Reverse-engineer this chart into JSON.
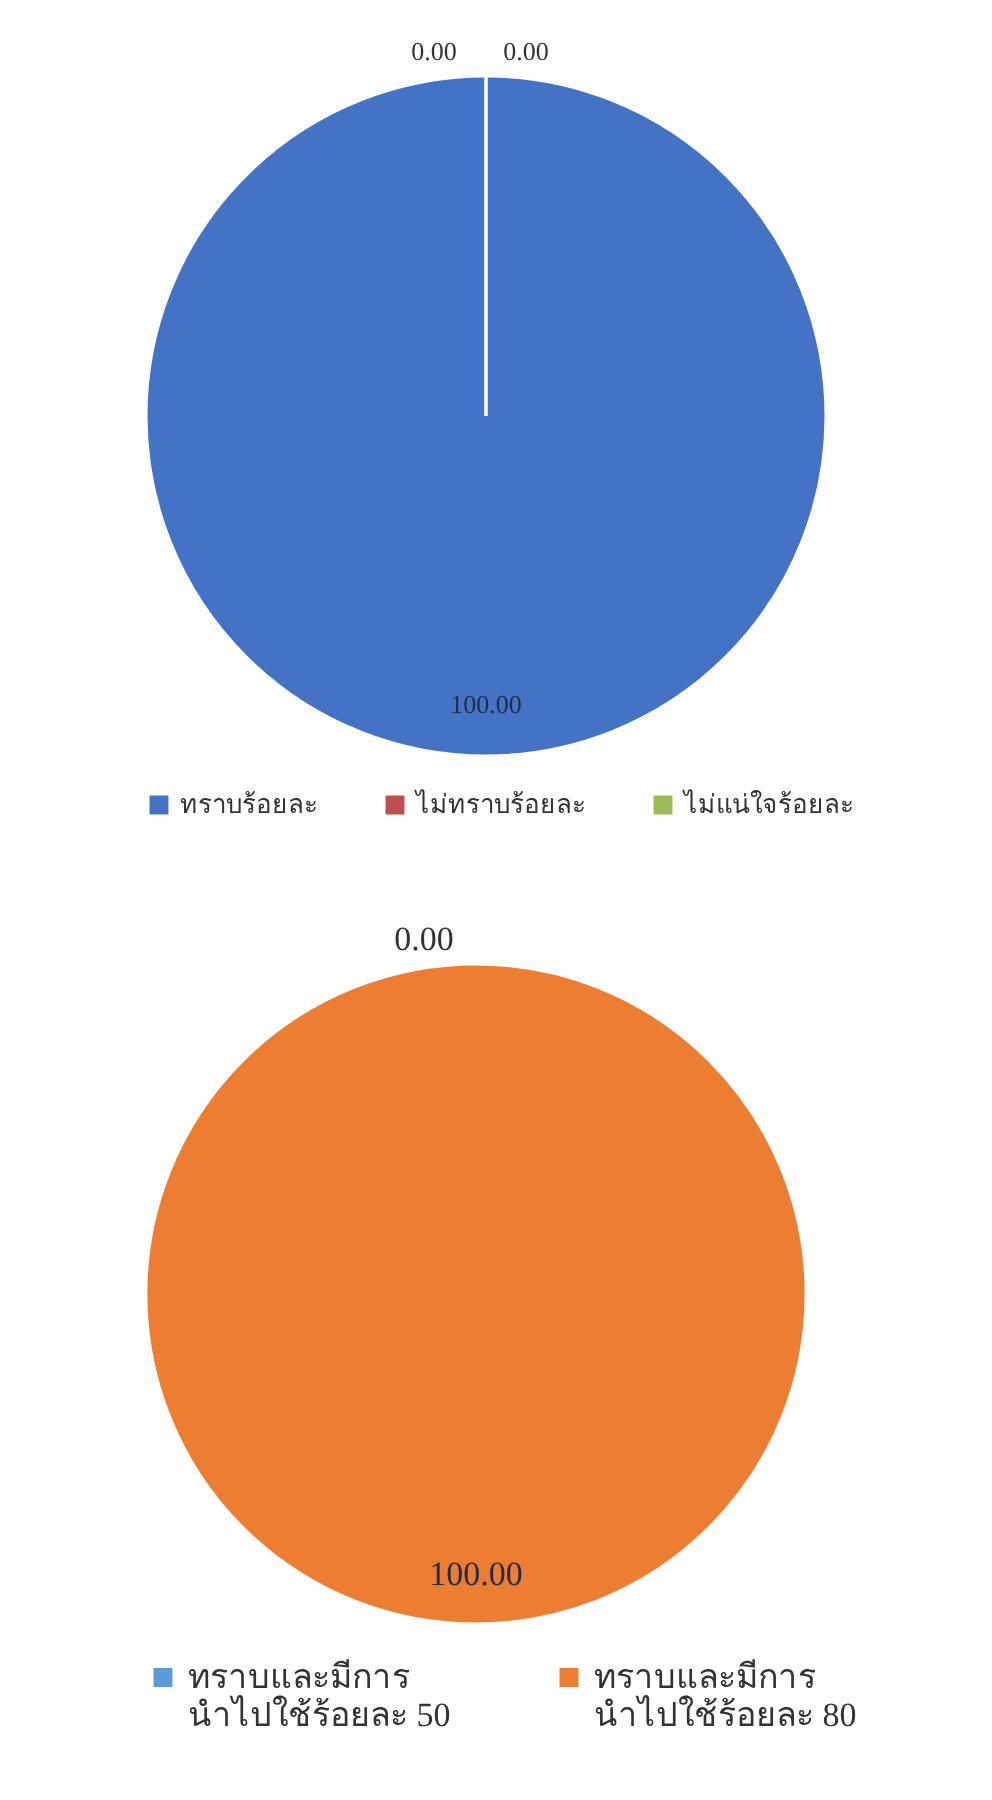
{
  "chart_data": [
    {
      "type": "pie",
      "categories": [
        "ทราบร้อยละ",
        "ไม่ทราบร้อยละ",
        "ไม่แน่ใจร้อยละ"
      ],
      "values": [
        100,
        0,
        0
      ],
      "colors": [
        "#4472c4",
        "#c0504d",
        "#9bbb59"
      ],
      "value_labels": [
        "100.00",
        "0.00",
        "0.00"
      ],
      "legend": "bottom"
    },
    {
      "type": "pie",
      "categories": [
        "ทราบและมีการ\nนำไปใช้ร้อยละ 50",
        "ทราบและมีการ\nนำไปใช้ร้อยละ 80"
      ],
      "values": [
        0,
        100
      ],
      "colors": [
        "#5b9bd5",
        "#ed7d31"
      ],
      "value_labels": [
        "0.00",
        "100.00"
      ],
      "legend": "bottom"
    }
  ]
}
